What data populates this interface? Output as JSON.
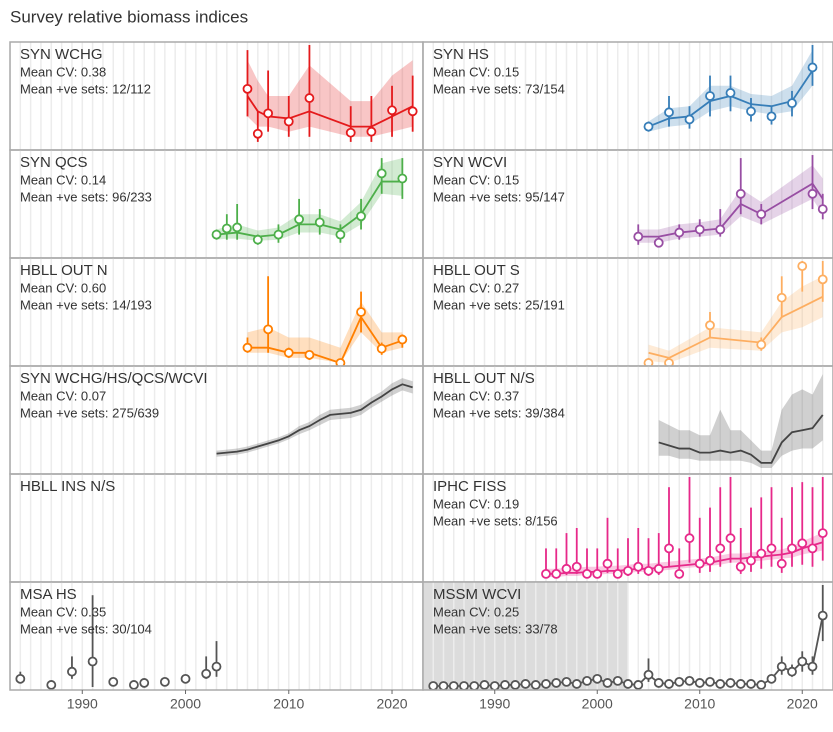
{
  "chart_data": {
    "type": "faceted_index",
    "title": "Survey relative biomass indices",
    "xlim": [
      1983,
      2023
    ],
    "xticks": [
      1990,
      2000,
      2010,
      2020
    ],
    "panels": [
      {
        "title": "SYN WCHG",
        "cv": "Mean CV: 0.38",
        "sets": "Mean +ve sets: 12/112",
        "color": "#e41a1c",
        "ylim": [
          0,
          1
        ],
        "x": [
          2006,
          2007,
          2008,
          2010,
          2012,
          2016,
          2018,
          2020,
          2022
        ],
        "values": [
          0.57,
          0.13,
          0.33,
          0.25,
          0.48,
          0.14,
          0.15,
          0.36,
          0.35
        ],
        "lower": [
          0.3,
          0.05,
          0.15,
          0.1,
          0.1,
          0.05,
          0.05,
          0.1,
          0.15
        ],
        "upper": [
          0.95,
          0.35,
          0.75,
          0.5,
          1,
          0.4,
          0.5,
          0.6,
          0.7
        ],
        "fit": [
          0.5,
          0.35,
          0.3,
          0.28,
          0.35,
          0.2,
          0.2,
          0.3,
          0.4
        ],
        "fit_lower": [
          0.3,
          0.2,
          0.2,
          0.15,
          0.2,
          0.1,
          0.1,
          0.15,
          0.2
        ],
        "fit_upper": [
          0.85,
          0.65,
          0.5,
          0.5,
          0.8,
          0.45,
          0.45,
          0.7,
          0.85
        ]
      },
      {
        "title": "SYN HS",
        "cv": "Mean CV: 0.15",
        "sets": "Mean +ve sets: 73/154",
        "color": "#377eb8",
        "ylim": [
          0,
          1
        ],
        "x": [
          2005,
          2007,
          2009,
          2011,
          2013,
          2015,
          2017,
          2019,
          2021
        ],
        "values": [
          0.2,
          0.34,
          0.27,
          0.5,
          0.53,
          0.35,
          0.3,
          0.43,
          0.78
        ],
        "lower": [
          0.15,
          0.2,
          0.18,
          0.3,
          0.35,
          0.25,
          0.22,
          0.3,
          0.6
        ],
        "upper": [
          0.25,
          0.5,
          0.4,
          0.7,
          0.7,
          0.48,
          0.4,
          0.55,
          1
        ],
        "fit": [
          0.2,
          0.28,
          0.3,
          0.45,
          0.5,
          0.42,
          0.4,
          0.45,
          0.75
        ],
        "fit_lower": [
          0.15,
          0.2,
          0.22,
          0.35,
          0.4,
          0.35,
          0.32,
          0.35,
          0.6
        ],
        "fit_upper": [
          0.25,
          0.38,
          0.4,
          0.6,
          0.6,
          0.52,
          0.5,
          0.6,
          0.95
        ]
      },
      {
        "title": "SYN QCS",
        "cv": "Mean CV: 0.14",
        "sets": "Mean +ve sets: 96/233",
        "color": "#4daf4a",
        "ylim": [
          0,
          1
        ],
        "x": [
          2003,
          2004,
          2005,
          2007,
          2009,
          2011,
          2013,
          2015,
          2017,
          2019,
          2021
        ],
        "values": [
          0.2,
          0.26,
          0.27,
          0.15,
          0.2,
          0.35,
          0.32,
          0.2,
          0.38,
          0.8,
          0.75
        ],
        "lower": [
          0.15,
          0.15,
          0.15,
          0.1,
          0.12,
          0.2,
          0.2,
          0.12,
          0.25,
          0.6,
          0.55
        ],
        "upper": [
          0.25,
          0.4,
          0.5,
          0.2,
          0.3,
          0.55,
          0.45,
          0.3,
          0.55,
          0.95,
          0.95
        ],
        "fit": [
          0.2,
          0.21,
          0.22,
          0.18,
          0.2,
          0.3,
          0.3,
          0.25,
          0.4,
          0.72,
          0.72
        ],
        "fit_lower": [
          0.15,
          0.16,
          0.16,
          0.14,
          0.15,
          0.22,
          0.22,
          0.18,
          0.3,
          0.6,
          0.58
        ],
        "fit_upper": [
          0.25,
          0.28,
          0.3,
          0.24,
          0.27,
          0.4,
          0.4,
          0.33,
          0.52,
          0.9,
          0.95
        ]
      },
      {
        "title": "SYN WCVI",
        "cv": "Mean CV: 0.15",
        "sets": "Mean +ve sets: 95/147",
        "color": "#984ea3",
        "ylim": [
          0,
          1
        ],
        "x": [
          2004,
          2006,
          2008,
          2010,
          2012,
          2014,
          2016,
          2021,
          2022
        ],
        "values": [
          0.18,
          0.12,
          0.22,
          0.25,
          0.25,
          0.6,
          0.4,
          0.6,
          0.45
        ],
        "lower": [
          0.1,
          0.08,
          0.15,
          0.18,
          0.18,
          0.4,
          0.3,
          0.45,
          0.35
        ],
        "upper": [
          0.3,
          0.18,
          0.3,
          0.35,
          0.45,
          0.95,
          0.5,
          0.98,
          0.6
        ],
        "fit": [
          0.18,
          0.18,
          0.22,
          0.24,
          0.26,
          0.5,
          0.4,
          0.7,
          0.55
        ],
        "fit_lower": [
          0.12,
          0.12,
          0.16,
          0.18,
          0.2,
          0.38,
          0.3,
          0.55,
          0.4
        ],
        "fit_upper": [
          0.25,
          0.25,
          0.3,
          0.32,
          0.35,
          0.65,
          0.52,
          0.88,
          0.75
        ]
      },
      {
        "title": "HBLL OUT N",
        "cv": "Mean CV: 0.60",
        "sets": "Mean +ve sets: 14/193",
        "color": "#ff7f00",
        "ylim": [
          0,
          1
        ],
        "x": [
          2006,
          2008,
          2010,
          2012,
          2015,
          2017,
          2019,
          2021
        ],
        "values": [
          0.15,
          0.33,
          0.1,
          0.08,
          0,
          0.5,
          0.14,
          0.23
        ],
        "lower": [
          0.1,
          0.1,
          0.05,
          0.03,
          0,
          0.3,
          0.08,
          0.15
        ],
        "upper": [
          0.25,
          0.85,
          0.15,
          0.12,
          0,
          0.7,
          0.2,
          0.28
        ],
        "fit": [
          0.15,
          0.15,
          0.1,
          0.1,
          0,
          0.45,
          0.15,
          0.22
        ],
        "fit_lower": [
          0.1,
          0.1,
          0.05,
          0.05,
          0,
          0.3,
          0.1,
          0.15
        ],
        "fit_upper": [
          0.3,
          0.35,
          0.25,
          0.25,
          0.15,
          0.6,
          0.3,
          0.3
        ]
      },
      {
        "title": "HBLL OUT S",
        "cv": "Mean CV: 0.27",
        "sets": "Mean +ve sets: 25/191",
        "color": "#fdae61",
        "ylim": [
          0,
          1
        ],
        "x": [
          2005,
          2007,
          2011,
          2016,
          2018,
          2020,
          2022
        ],
        "values": [
          0,
          0,
          0.37,
          0.18,
          0.64,
          0.95,
          0.82
        ],
        "lower": [
          0,
          0,
          0.25,
          0.12,
          0.45,
          0.7,
          0.6
        ],
        "upper": [
          0.05,
          0.05,
          0.5,
          0.25,
          0.85,
          1,
          1
        ],
        "fit": [
          0.1,
          0.05,
          0.25,
          0.2,
          0.45,
          0.55,
          0.65
        ],
        "fit_lower": [
          0.02,
          0,
          0.15,
          0.12,
          0.3,
          0.35,
          0.45
        ],
        "fit_upper": [
          0.18,
          0.12,
          0.35,
          0.3,
          0.6,
          0.75,
          0.85
        ]
      },
      {
        "title": "SYN WCHG/HS/QCS/WCVI",
        "cv": "Mean CV: 0.07",
        "sets": "Mean +ve sets: 275/639",
        "color": "#444444",
        "ylim": [
          0,
          1
        ],
        "x": [
          2003,
          2004,
          2005,
          2006,
          2007,
          2008,
          2009,
          2010,
          2011,
          2012,
          2013,
          2014,
          2015,
          2016,
          2017,
          2018,
          2019,
          2020,
          2021,
          2022
        ],
        "fit": [
          0.17,
          0.18,
          0.19,
          0.21,
          0.24,
          0.27,
          0.3,
          0.34,
          0.4,
          0.44,
          0.5,
          0.55,
          0.56,
          0.57,
          0.6,
          0.67,
          0.73,
          0.8,
          0.85,
          0.82
        ],
        "fit_lower": [
          0.14,
          0.15,
          0.16,
          0.18,
          0.21,
          0.24,
          0.27,
          0.31,
          0.36,
          0.4,
          0.45,
          0.5,
          0.51,
          0.52,
          0.55,
          0.62,
          0.68,
          0.74,
          0.79,
          0.76
        ],
        "fit_upper": [
          0.2,
          0.21,
          0.22,
          0.24,
          0.27,
          0.3,
          0.33,
          0.37,
          0.44,
          0.48,
          0.55,
          0.6,
          0.61,
          0.62,
          0.65,
          0.72,
          0.78,
          0.86,
          0.91,
          0.88
        ]
      },
      {
        "title": "HBLL OUT N/S",
        "cv": "Mean CV: 0.37",
        "sets": "Mean +ve sets: 39/384",
        "color": "#444444",
        "ylim": [
          0,
          1
        ],
        "x": [
          2006,
          2007,
          2008,
          2009,
          2010,
          2011,
          2012,
          2013,
          2014,
          2015,
          2016,
          2017,
          2018,
          2019,
          2020,
          2021,
          2022
        ],
        "fit": [
          0.28,
          0.25,
          0.22,
          0.22,
          0.18,
          0.18,
          0.2,
          0.18,
          0.2,
          0.16,
          0.08,
          0.08,
          0.28,
          0.38,
          0.4,
          0.42,
          0.55
        ],
        "fit_lower": [
          0.15,
          0.15,
          0.12,
          0.12,
          0.1,
          0.1,
          0.1,
          0.1,
          0.1,
          0.08,
          0.03,
          0.03,
          0.15,
          0.2,
          0.22,
          0.22,
          0.3
        ],
        "fit_upper": [
          0.5,
          0.45,
          0.4,
          0.4,
          0.35,
          0.35,
          0.6,
          0.4,
          0.4,
          0.3,
          0.2,
          0.2,
          0.6,
          0.75,
          0.8,
          0.75,
          0.95
        ]
      },
      {
        "title": "HBLL INS N/S"
      },
      {
        "title": "IPHC FISS",
        "cv": "Mean CV: 0.19",
        "sets": "Mean +ve sets: 8/156",
        "color": "#e7298a",
        "ylim": [
          0,
          1
        ],
        "x": [
          1995,
          1996,
          1997,
          1998,
          1999,
          2000,
          2001,
          2002,
          2003,
          2004,
          2005,
          2006,
          2007,
          2008,
          2009,
          2010,
          2011,
          2012,
          2013,
          2014,
          2015,
          2016,
          2017,
          2018,
          2019,
          2020,
          2021,
          2022
        ],
        "values": [
          0.05,
          0.05,
          0.1,
          0.12,
          0.05,
          0.05,
          0.15,
          0.05,
          0.08,
          0.12,
          0.08,
          0.1,
          0.3,
          0.05,
          0.4,
          0.15,
          0.18,
          0.3,
          0.4,
          0.12,
          0.18,
          0.25,
          0.3,
          0.15,
          0.3,
          0.35,
          0.3,
          0.45
        ],
        "lower": [
          0.02,
          0.02,
          0.04,
          0.05,
          0.02,
          0.02,
          0.06,
          0.02,
          0.03,
          0.05,
          0.03,
          0.04,
          0.12,
          0.02,
          0.16,
          0.06,
          0.07,
          0.12,
          0.16,
          0.05,
          0.07,
          0.1,
          0.12,
          0.06,
          0.12,
          0.14,
          0.12,
          0.18
        ],
        "upper": [
          0.3,
          0.3,
          0.45,
          0.5,
          0.3,
          0.3,
          0.6,
          0.3,
          0.4,
          0.5,
          0.4,
          0.45,
          0.9,
          0.3,
          1,
          0.6,
          0.7,
          0.9,
          1,
          0.5,
          0.7,
          0.8,
          0.9,
          0.6,
          0.9,
          0.95,
          0.9,
          1
        ],
        "fit": [
          0.05,
          0.05,
          0.06,
          0.06,
          0.07,
          0.07,
          0.08,
          0.08,
          0.09,
          0.1,
          0.1,
          0.11,
          0.12,
          0.13,
          0.14,
          0.15,
          0.16,
          0.18,
          0.2,
          0.2,
          0.21,
          0.22,
          0.23,
          0.24,
          0.26,
          0.3,
          0.33,
          0.36
        ],
        "fit_lower": [
          0.02,
          0.02,
          0.03,
          0.03,
          0.04,
          0.04,
          0.05,
          0.05,
          0.06,
          0.07,
          0.07,
          0.08,
          0.09,
          0.1,
          0.11,
          0.12,
          0.13,
          0.14,
          0.16,
          0.16,
          0.17,
          0.18,
          0.19,
          0.2,
          0.21,
          0.24,
          0.26,
          0.28
        ],
        "fit_upper": [
          0.1,
          0.1,
          0.11,
          0.11,
          0.12,
          0.12,
          0.13,
          0.13,
          0.14,
          0.15,
          0.15,
          0.16,
          0.17,
          0.18,
          0.19,
          0.2,
          0.21,
          0.23,
          0.25,
          0.25,
          0.26,
          0.27,
          0.28,
          0.29,
          0.32,
          0.37,
          0.41,
          0.46
        ]
      },
      {
        "title": "MSA HS",
        "cv": "Mean CV: 0.35",
        "sets": "Mean +ve sets: 30/104",
        "color": "#555555",
        "ylim": [
          0,
          1
        ],
        "x": [
          1984,
          1987,
          1989,
          1991,
          1993,
          1995,
          1996,
          1998,
          2000,
          2002,
          2003
        ],
        "values": [
          0.08,
          0.02,
          0.15,
          0.25,
          0.05,
          0.02,
          0.04,
          0.05,
          0.08,
          0.13,
          0.2
        ],
        "lower": [
          0.04,
          0.01,
          0.08,
          0,
          0.03,
          0.01,
          0.02,
          0.03,
          0.05,
          0.08,
          0.1
        ],
        "upper": [
          0.15,
          0.03,
          0.3,
          0.9,
          0.07,
          0.03,
          0.06,
          0.08,
          0.1,
          0.3,
          0.45
        ]
      },
      {
        "title": "MSSM WCVI",
        "cv": "Mean CV: 0.25",
        "sets": "Mean +ve sets: 33/78",
        "color": "#555555",
        "ylim": [
          0,
          1
        ],
        "connect": true,
        "shade": [
          1983,
          2003
        ],
        "x": [
          1984,
          1985,
          1986,
          1987,
          1988,
          1989,
          1990,
          1991,
          1992,
          1993,
          1994,
          1995,
          1996,
          1997,
          1998,
          1999,
          2000,
          2001,
          2002,
          2003,
          2004,
          2005,
          2006,
          2007,
          2008,
          2009,
          2010,
          2011,
          2012,
          2013,
          2014,
          2015,
          2016,
          2017,
          2018,
          2019,
          2020,
          2021,
          2022
        ],
        "values": [
          0.01,
          0.01,
          0.01,
          0.01,
          0.01,
          0.02,
          0.01,
          0.02,
          0.02,
          0.03,
          0.02,
          0.03,
          0.04,
          0.05,
          0.03,
          0.06,
          0.08,
          0.04,
          0.06,
          0.03,
          0.02,
          0.12,
          0.04,
          0.03,
          0.05,
          0.06,
          0.04,
          0.05,
          0.03,
          0.04,
          0.03,
          0.03,
          0.02,
          0.08,
          0.2,
          0.15,
          0.25,
          0.2,
          0.7
        ],
        "lower": [
          0.005,
          0.005,
          0.005,
          0.005,
          0.005,
          0.01,
          0.005,
          0.01,
          0.01,
          0.015,
          0.01,
          0.015,
          0.02,
          0.03,
          0.015,
          0.03,
          0.05,
          0.02,
          0.03,
          0.015,
          0.01,
          0.05,
          0.02,
          0.015,
          0.03,
          0.03,
          0.02,
          0.03,
          0.015,
          0.02,
          0.015,
          0.015,
          0.01,
          0.05,
          0.12,
          0.1,
          0.15,
          0.12,
          0.45
        ],
        "upper": [
          0.015,
          0.015,
          0.015,
          0.015,
          0.015,
          0.03,
          0.015,
          0.03,
          0.03,
          0.045,
          0.03,
          0.045,
          0.06,
          0.07,
          0.045,
          0.09,
          0.11,
          0.06,
          0.09,
          0.045,
          0.03,
          0.28,
          0.06,
          0.045,
          0.07,
          0.09,
          0.06,
          0.07,
          0.045,
          0.06,
          0.045,
          0.045,
          0.03,
          0.12,
          0.3,
          0.22,
          0.35,
          0.3,
          1
        ]
      }
    ]
  }
}
